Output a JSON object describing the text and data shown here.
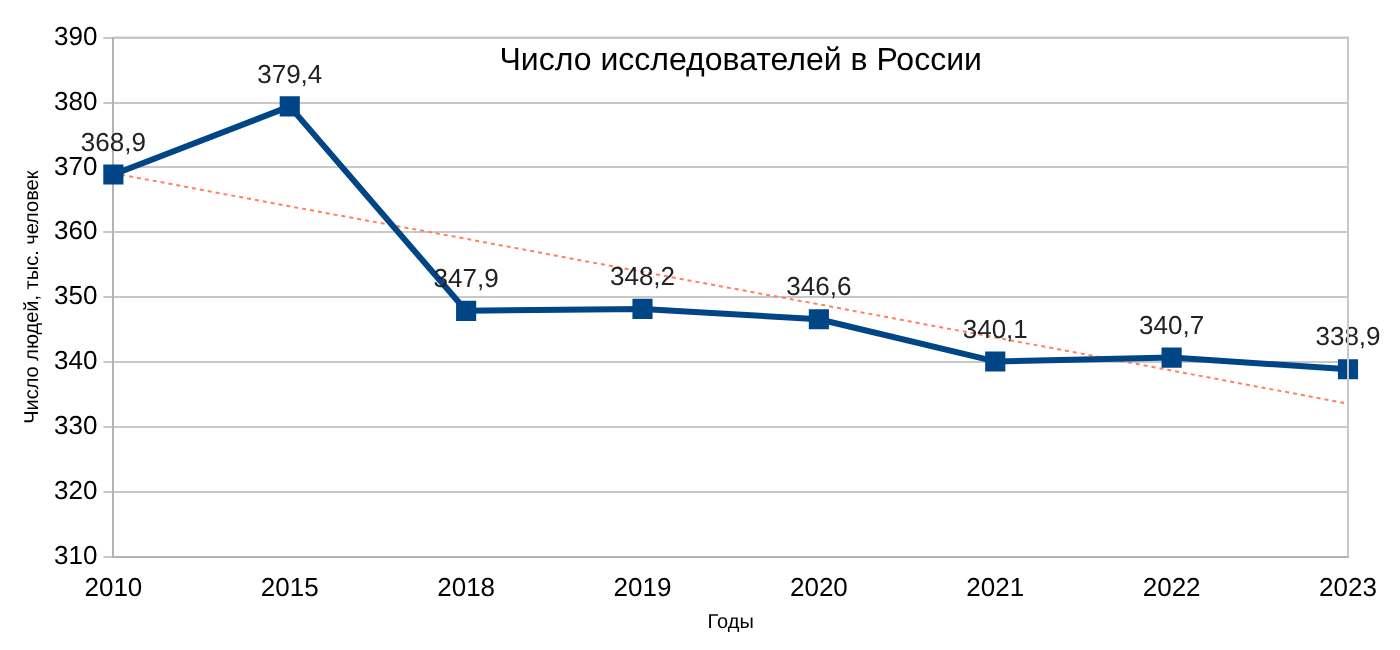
{
  "chart_data": {
    "type": "line",
    "title": "Число исследователей в России",
    "xlabel": "Годы",
    "ylabel": "Число людей, тыс. человек",
    "categories": [
      "2010",
      "2015",
      "2018",
      "2019",
      "2020",
      "2021",
      "2022",
      "2023"
    ],
    "series": [
      {
        "color": "#004586",
        "values": [
          368.9,
          379.4,
          347.9,
          348.2,
          346.6,
          340.1,
          340.7,
          338.9
        ],
        "value_labels": [
          "368,9",
          "379,4",
          "347,9",
          "348,2",
          "346,6",
          "340,1",
          "340,7",
          "338,9"
        ]
      },
      {
        "type": "line",
        "color": "#ff8060",
        "marker": "none",
        "line_style": "dotted",
        "values": [
          369.1,
          364.0,
          359.0,
          353.9,
          348.9,
          343.8,
          338.7,
          333.6
        ]
      }
    ],
    "ylim": [
      310,
      390
    ],
    "yticks": [
      310,
      320,
      330,
      340,
      350,
      360,
      370,
      380,
      390
    ],
    "grid": "y",
    "legend": false,
    "marker": "square",
    "line_style": "solid"
  }
}
